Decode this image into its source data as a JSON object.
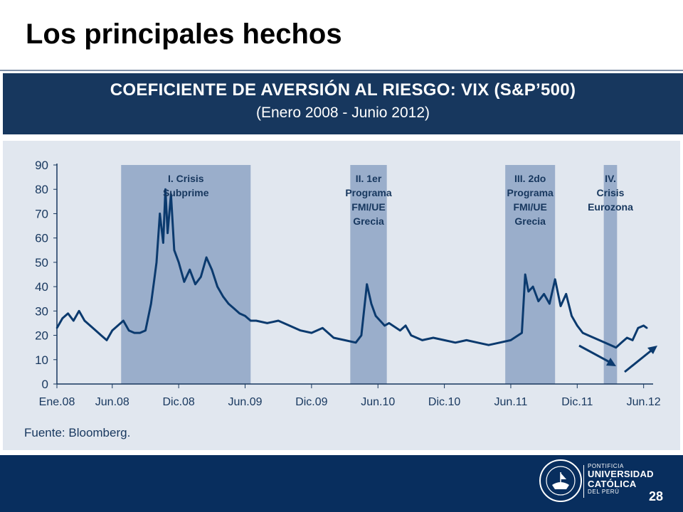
{
  "slide": {
    "title": "Los principales hechos",
    "page_number": "28"
  },
  "chart_header": {
    "title": "COEFICIENTE DE AVERSIÓN AL RIESGO: VIX (S&P’500)",
    "subtitle": "(Enero 2008 - Junio 2012)"
  },
  "source": "Fuente: Bloomberg.",
  "logo": {
    "line1": "PONTIFICIA",
    "line2": "UNIVERSIDAD",
    "line3": "CATÓLICA",
    "line4": "DEL PERÚ",
    "seal_text": "ET LUX IN TENEBRIS LUCET"
  },
  "colors": {
    "header_bg": "#17375e",
    "panel_bg": "#e1e7ef",
    "shade": "#9aaecb",
    "line": "#0b3a6e",
    "footer_bg": "#082e5e"
  },
  "chart_data": {
    "type": "line",
    "title": "",
    "xlabel": "",
    "ylabel": "",
    "ylim": [
      0,
      90
    ],
    "yticks": [
      0,
      10,
      20,
      30,
      40,
      50,
      60,
      70,
      80,
      90
    ],
    "x_tick_labels": [
      "Ene.08",
      "Jun.08",
      "Dic.08",
      "Jun.09",
      "Dic.09",
      "Jun.10",
      "Dic.10",
      "Jun.11",
      "Dic.11",
      "Jun.12"
    ],
    "x_tick_positions": [
      0,
      5,
      11,
      17,
      23,
      29,
      35,
      41,
      47,
      53
    ],
    "x_range": [
      0,
      53.6
    ],
    "grid": false,
    "series": [
      {
        "name": "",
        "x": [
          0,
          0.5,
          1,
          1.5,
          2,
          2.5,
          3,
          3.5,
          4,
          4.5,
          5,
          5.5,
          6,
          6.5,
          7,
          7.5,
          8,
          8.5,
          8.8,
          9,
          9.3,
          9.6,
          9.8,
          10,
          10.3,
          10.6,
          11,
          11.5,
          12,
          12.5,
          13,
          13.5,
          14,
          14.5,
          15,
          15.5,
          16,
          16.5,
          17,
          17.5,
          18,
          19,
          20,
          21,
          22,
          23,
          24,
          25,
          26,
          27,
          27.5,
          28,
          28.4,
          28.8,
          29.2,
          29.6,
          30,
          31,
          31.5,
          32,
          33,
          34,
          35,
          36,
          37,
          38,
          39,
          40,
          41,
          42,
          42.3,
          42.6,
          43,
          43.5,
          44,
          44.5,
          45,
          45.5,
          46,
          46.5,
          47,
          47.5,
          48,
          49,
          50,
          50.5,
          51,
          51.5,
          52,
          52.5,
          53,
          53.3
        ],
        "values": [
          23,
          27,
          29,
          26,
          30,
          26,
          24,
          22,
          20,
          18,
          22,
          24,
          26,
          22,
          21,
          21,
          22,
          33,
          43,
          50,
          70,
          58,
          80,
          62,
          78,
          55,
          50,
          42,
          47,
          41,
          44,
          52,
          47,
          40,
          36,
          33,
          31,
          29,
          28,
          26,
          26,
          25,
          26,
          24,
          22,
          21,
          23,
          19,
          18,
          17,
          20,
          41,
          33,
          28,
          26,
          24,
          25,
          22,
          24,
          20,
          18,
          19,
          18,
          17,
          18,
          17,
          16,
          17,
          18,
          21,
          45,
          38,
          40,
          34,
          37,
          33,
          43,
          32,
          37,
          28,
          24,
          21,
          20,
          18,
          16,
          15,
          17,
          19,
          18,
          23,
          24,
          23
        ]
      }
    ],
    "shaded_periods": [
      {
        "start": 5.8,
        "end": 17.5,
        "label_lines": [
          "I. Crisis",
          "Subprime"
        ]
      },
      {
        "start": 26.5,
        "end": 29.8,
        "label_lines": [
          "II. 1er",
          "Programa",
          "FMI/UE",
          "Grecia"
        ]
      },
      {
        "start": 40.5,
        "end": 45,
        "label_lines": [
          "III. 2do",
          "Programa",
          "FMI/UE",
          "Grecia"
        ]
      },
      {
        "start": 49.4,
        "end": 50.6,
        "label_lines": [
          "IV.",
          "Crisis",
          "Eurozona"
        ]
      }
    ]
  }
}
